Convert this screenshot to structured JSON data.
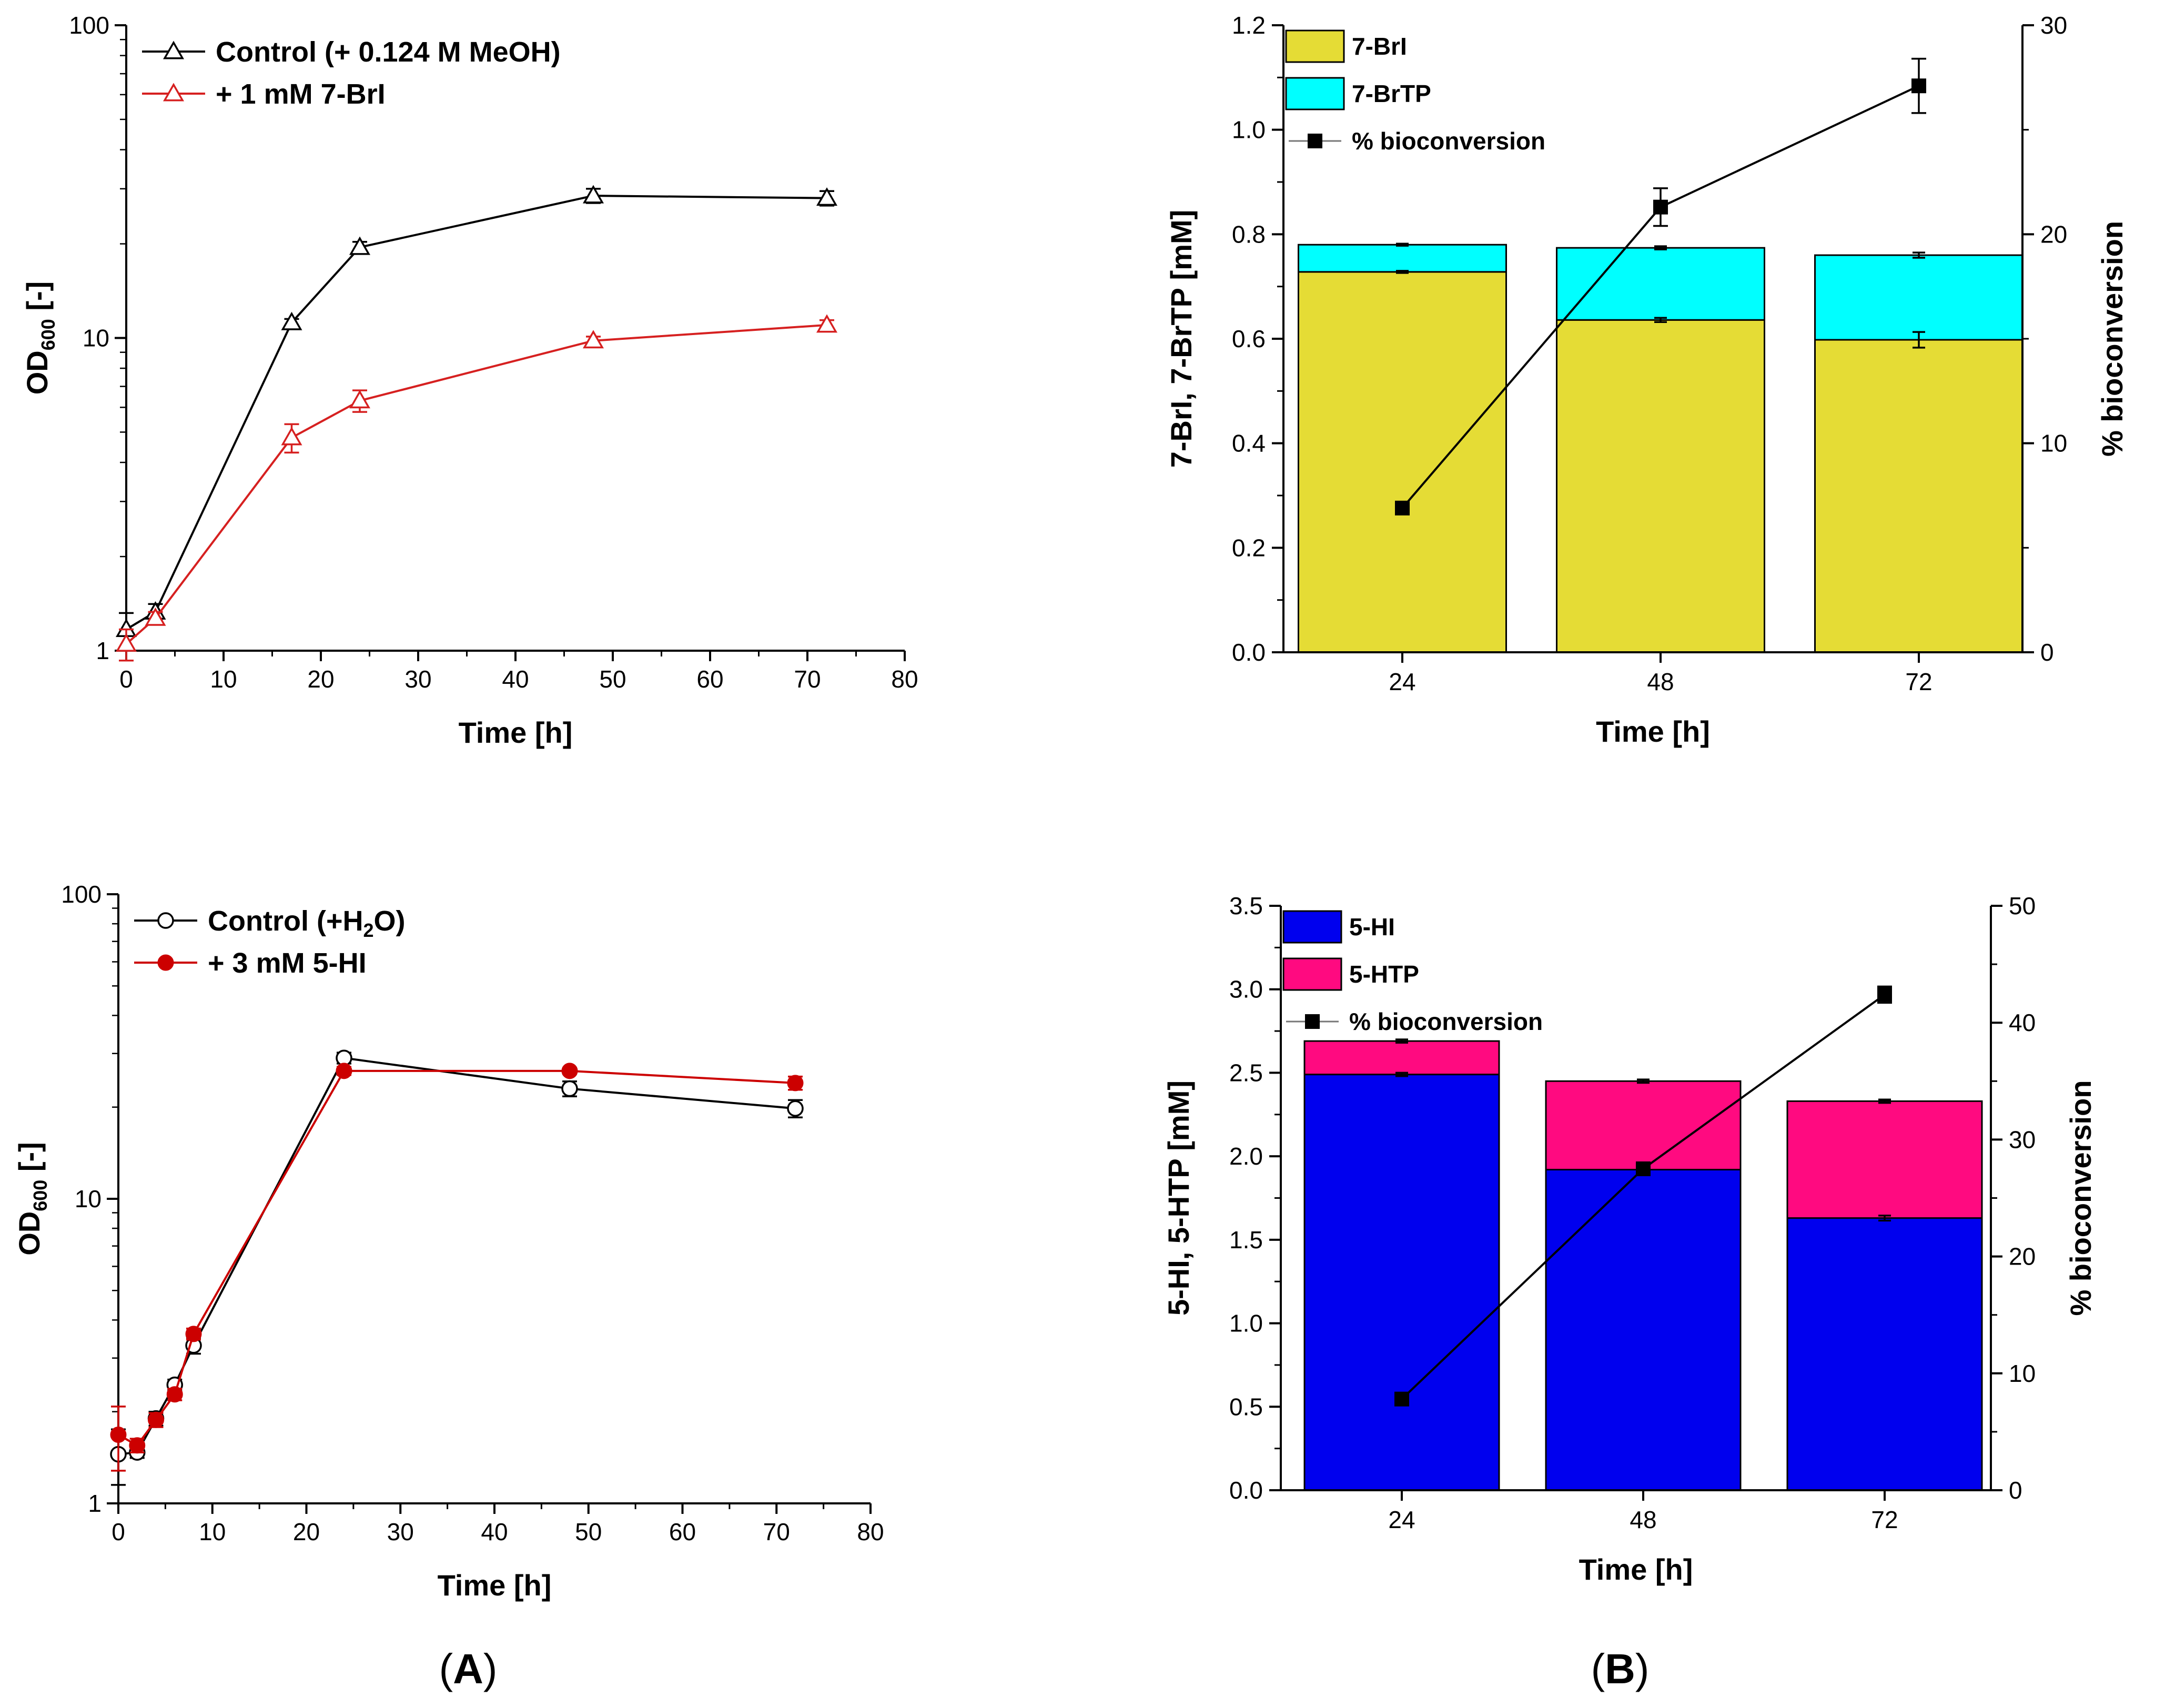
{
  "panels": {
    "A": "A",
    "B": "B",
    "open_paren": "(",
    "close_paren": ")"
  },
  "chart_data": [
    {
      "id": "A1",
      "type": "line",
      "yscale": "log",
      "xlabel": "Time [h]",
      "ylabel_main": "OD",
      "ylabel_sub": "600",
      "ylabel_tail": " [-]",
      "xlim": [
        0,
        80
      ],
      "ylim": [
        1,
        100
      ],
      "xticks": [
        "0",
        "10",
        "20",
        "30",
        "40",
        "50",
        "60",
        "70",
        "80"
      ],
      "yticks": [
        "1",
        "10",
        "100"
      ],
      "legend_placement": "top-left",
      "series": [
        {
          "name": "Control (+ 0.124 M MeOH)",
          "color": "#000000",
          "marker": "triangle-open",
          "x": [
            0,
            3,
            17,
            24,
            48,
            72
          ],
          "y": [
            1.17,
            1.33,
            11.2,
            19.5,
            28.5,
            28.0
          ],
          "err": [
            0.15,
            0.08,
            0.3,
            0.8,
            1.5,
            1.5
          ]
        },
        {
          "name": "+ 1 mM 7-BrI",
          "color": "#d62020",
          "marker": "triangle-open",
          "x": [
            0,
            3,
            17,
            24,
            48,
            72
          ],
          "y": [
            1.05,
            1.27,
            4.8,
            6.3,
            9.8,
            11.0
          ],
          "err": [
            0.12,
            0.06,
            0.5,
            0.5,
            0.3,
            0.4
          ]
        }
      ]
    },
    {
      "id": "A2",
      "type": "line",
      "yscale": "log",
      "xlabel": "Time [h]",
      "ylabel_main": "OD",
      "ylabel_sub": "600",
      "ylabel_tail": " [-]",
      "xlim": [
        0,
        80
      ],
      "ylim": [
        1,
        100
      ],
      "xticks": [
        "0",
        "10",
        "20",
        "30",
        "40",
        "50",
        "60",
        "70",
        "80"
      ],
      "yticks": [
        "1",
        "10",
        "100"
      ],
      "legend_placement": "top-left",
      "series": [
        {
          "name_main": "Control (+H",
          "name_sub": "2",
          "name_tail": "O)",
          "name": "Control (+H2O)",
          "color": "#000000",
          "marker": "circle-open",
          "x": [
            0,
            2,
            4,
            6,
            8,
            24,
            48,
            72
          ],
          "y": [
            1.45,
            1.47,
            1.9,
            2.45,
            3.3,
            29.0,
            23.0,
            19.8
          ],
          "err": [
            0.3,
            0.06,
            0.1,
            0.1,
            0.2,
            1.2,
            1.3,
            1.3
          ]
        },
        {
          "name": "+ 3 mM 5-HI",
          "color": "#cc0000",
          "marker": "circle-filled",
          "x": [
            0,
            2,
            4,
            6,
            8,
            24,
            48,
            72
          ],
          "y": [
            1.68,
            1.55,
            1.88,
            2.28,
            3.6,
            26.3,
            26.3,
            24.0
          ],
          "err": [
            0.4,
            0.08,
            0.1,
            0.1,
            0.15,
            0.8,
            0.6,
            1.2
          ]
        }
      ]
    },
    {
      "id": "B1",
      "type": "bar",
      "stacked": true,
      "xlabel": "Time [h]",
      "ylabel": "7-BrI, 7-BrTP [mM]",
      "ylabel2": "% bioconversion",
      "categories": [
        "24",
        "48",
        "72"
      ],
      "ylim": [
        0,
        1.2
      ],
      "y2lim": [
        0,
        30
      ],
      "yticks": [
        "0.0",
        "0.2",
        "0.4",
        "0.6",
        "0.8",
        "1.0",
        "1.2"
      ],
      "y2ticks": [
        "0",
        "10",
        "20",
        "30"
      ],
      "legend_placement": "top-left",
      "series": [
        {
          "name": "7-BrI",
          "color": "#e5dc35",
          "values": [
            0.728,
            0.636,
            0.598
          ],
          "err": [
            0.002,
            0.004,
            0.015
          ]
        },
        {
          "name": "7-BrTP",
          "color": "#00ffff",
          "values": [
            0.052,
            0.138,
            0.162
          ],
          "err": [
            0.002,
            0.003,
            0.005
          ]
        }
      ],
      "line_series": {
        "name": "% bioconversion",
        "color": "#000000",
        "values": [
          6.9,
          21.3,
          27.1
        ],
        "err": [
          0.2,
          0.9,
          1.3
        ]
      }
    },
    {
      "id": "B2",
      "type": "bar",
      "stacked": true,
      "xlabel": "Time [h]",
      "ylabel": "5-HI, 5-HTP [mM]",
      "ylabel2": "% bioconversion",
      "categories": [
        "24",
        "48",
        "72"
      ],
      "ylim": [
        0,
        3.5
      ],
      "y2lim": [
        0,
        50
      ],
      "yticks": [
        "0.0",
        "0.5",
        "1.0",
        "1.5",
        "2.0",
        "2.5",
        "3.0",
        "3.5"
      ],
      "y2ticks": [
        "0",
        "10",
        "20",
        "30",
        "40",
        "50"
      ],
      "legend_placement": "top-left",
      "series": [
        {
          "name": "5-HI",
          "color": "#0000ee",
          "values": [
            2.49,
            1.92,
            1.63
          ],
          "err": [
            0.01,
            0.01,
            0.015
          ]
        },
        {
          "name": "5-HTP",
          "color": "#ff0a80",
          "values": [
            0.2,
            0.53,
            0.7
          ],
          "err": [
            0.01,
            0.01,
            0.01
          ]
        }
      ],
      "line_series": {
        "name": "% bioconversion",
        "color": "#000000",
        "values": [
          7.8,
          27.5,
          42.4
        ],
        "err": [
          0.2,
          0.5,
          0.7
        ]
      }
    }
  ]
}
